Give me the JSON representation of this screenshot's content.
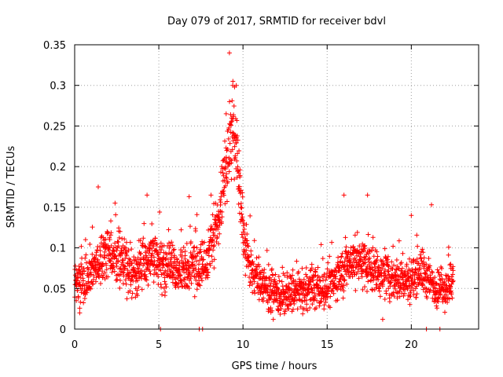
{
  "chart_data": {
    "type": "scatter",
    "title": "Day 079 of 2017, SRMTID for receiver bdvl",
    "xlabel": "GPS time / hours",
    "ylabel": "SRMTID / TECUs",
    "xlim": [
      0,
      24
    ],
    "ylim": [
      0,
      0.35
    ],
    "grid": true,
    "x_ticks": [
      0,
      5,
      10,
      15,
      20
    ],
    "x_tick_labels": [
      "0",
      "5",
      "10",
      "15",
      "20"
    ],
    "y_ticks": [
      0,
      0.05,
      0.1,
      0.15,
      0.2,
      0.25,
      0.3,
      0.35
    ],
    "y_tick_labels": [
      "0",
      "0.05",
      "0.1",
      "0.15",
      "0.2",
      "0.25",
      "0.3",
      "0.35"
    ],
    "marker": "+",
    "series": [
      {
        "name": "SRMTID",
        "color": "#ff0000",
        "profile_x": [
          0,
          0.5,
          1,
          1.5,
          2,
          2.5,
          3,
          3.5,
          4,
          4.5,
          5,
          5.5,
          6,
          6.5,
          7,
          7.5,
          8,
          8.5,
          9,
          9.3,
          9.6,
          10,
          10.5,
          11,
          11.5,
          12,
          12.5,
          13,
          13.5,
          14,
          14.5,
          15,
          15.5,
          16,
          16.5,
          17,
          17.5,
          18,
          18.5,
          19,
          19.5,
          20,
          20.5,
          21,
          21.5,
          22,
          22.5
        ],
        "profile_y": [
          0.055,
          0.06,
          0.065,
          0.085,
          0.09,
          0.085,
          0.08,
          0.065,
          0.08,
          0.09,
          0.08,
          0.075,
          0.075,
          0.07,
          0.08,
          0.07,
          0.095,
          0.13,
          0.2,
          0.25,
          0.22,
          0.12,
          0.07,
          0.06,
          0.05,
          0.04,
          0.04,
          0.045,
          0.045,
          0.05,
          0.05,
          0.05,
          0.06,
          0.075,
          0.085,
          0.085,
          0.075,
          0.07,
          0.065,
          0.065,
          0.06,
          0.06,
          0.075,
          0.06,
          0.05,
          0.05,
          0.06
        ],
        "spread": 0.025,
        "notable_points": [
          {
            "x": 9.4,
            "y": 0.305
          },
          {
            "x": 9.5,
            "y": 0.298
          },
          {
            "x": 9.6,
            "y": 0.3
          },
          {
            "x": 9.2,
            "y": 0.28
          },
          {
            "x": 9.0,
            "y": 0.265
          },
          {
            "x": 9.3,
            "y": 0.255
          },
          {
            "x": 1.4,
            "y": 0.175
          },
          {
            "x": 4.3,
            "y": 0.165
          },
          {
            "x": 6.8,
            "y": 0.163
          },
          {
            "x": 16.0,
            "y": 0.165
          },
          {
            "x": 17.4,
            "y": 0.165
          },
          {
            "x": 21.2,
            "y": 0.153
          },
          {
            "x": 2.4,
            "y": 0.155
          },
          {
            "x": 8.1,
            "y": 0.165
          },
          {
            "x": 20.0,
            "y": 0.14
          },
          {
            "x": 11.8,
            "y": 0.012
          },
          {
            "x": 18.3,
            "y": 0.012
          },
          {
            "x": 0.3,
            "y": 0.02
          },
          {
            "x": 5.1,
            "y": 0.0
          },
          {
            "x": 7.4,
            "y": 0.0
          },
          {
            "x": 7.6,
            "y": 0.0
          },
          {
            "x": 20.9,
            "y": 0.0
          },
          {
            "x": 21.7,
            "y": 0.0
          }
        ]
      }
    ]
  }
}
